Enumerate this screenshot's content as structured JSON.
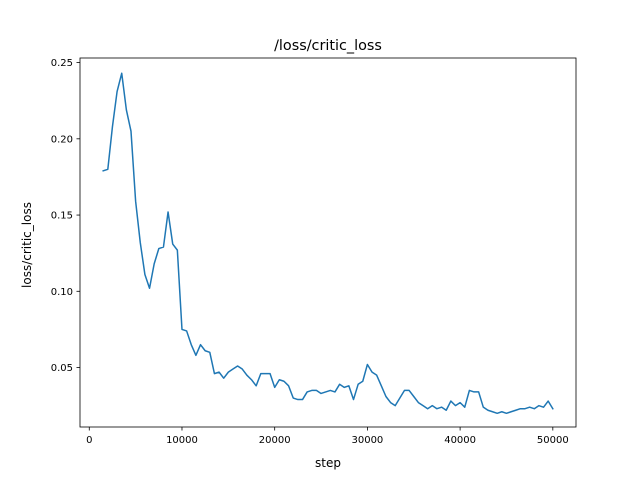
{
  "chart_data": {
    "type": "line",
    "title": "/loss/critic_loss",
    "xlabel": "step",
    "ylabel": "loss/critic_loss",
    "xlim": [
      -1000,
      52500
    ],
    "ylim": [
      0.011,
      0.253
    ],
    "xticks": [
      0,
      10000,
      20000,
      30000,
      40000,
      50000
    ],
    "xtick_labels": [
      "0",
      "10000",
      "20000",
      "30000",
      "40000",
      "50000"
    ],
    "yticks": [
      0.05,
      0.1,
      0.15,
      0.2,
      0.25
    ],
    "ytick_labels": [
      "0.05",
      "0.10",
      "0.15",
      "0.20",
      "0.25"
    ],
    "grid": false,
    "series": [
      {
        "color": "#1f77b4",
        "x": [
          1500,
          2000,
          2500,
          3000,
          3500,
          4000,
          4500,
          5000,
          5500,
          6000,
          6500,
          7000,
          7500,
          8000,
          8500,
          9000,
          9500,
          10000,
          10500,
          11000,
          11500,
          12000,
          12500,
          13000,
          13500,
          14000,
          14500,
          15000,
          15500,
          16000,
          16500,
          17000,
          17500,
          18000,
          18500,
          19000,
          19500,
          20000,
          20500,
          21000,
          21500,
          22000,
          22500,
          23000,
          23500,
          24000,
          24500,
          25000,
          25500,
          26000,
          26500,
          27000,
          27500,
          28000,
          28500,
          29000,
          29500,
          30000,
          30500,
          31000,
          31500,
          32000,
          32500,
          33000,
          33500,
          34000,
          34500,
          35000,
          35500,
          36000,
          36500,
          37000,
          37500,
          38000,
          38500,
          39000,
          39500,
          40000,
          40500,
          41000,
          41500,
          42000,
          42500,
          43000,
          43500,
          44000,
          44500,
          45000,
          45500,
          46000,
          46500,
          47000,
          47500,
          48000,
          48500,
          49000,
          49500,
          50000
        ],
        "y": [
          0.179,
          0.18,
          0.208,
          0.231,
          0.243,
          0.219,
          0.205,
          0.159,
          0.132,
          0.111,
          0.102,
          0.118,
          0.128,
          0.129,
          0.152,
          0.131,
          0.127,
          0.075,
          0.074,
          0.065,
          0.058,
          0.065,
          0.061,
          0.06,
          0.046,
          0.047,
          0.043,
          0.047,
          0.049,
          0.051,
          0.049,
          0.045,
          0.042,
          0.038,
          0.046,
          0.046,
          0.046,
          0.037,
          0.042,
          0.041,
          0.038,
          0.03,
          0.029,
          0.029,
          0.034,
          0.035,
          0.035,
          0.033,
          0.034,
          0.035,
          0.034,
          0.039,
          0.037,
          0.038,
          0.029,
          0.039,
          0.041,
          0.052,
          0.047,
          0.045,
          0.038,
          0.031,
          0.027,
          0.025,
          0.03,
          0.035,
          0.035,
          0.031,
          0.027,
          0.025,
          0.023,
          0.025,
          0.023,
          0.024,
          0.022,
          0.028,
          0.025,
          0.027,
          0.024,
          0.035,
          0.034,
          0.034,
          0.024,
          0.022,
          0.021,
          0.02,
          0.021,
          0.02,
          0.021,
          0.022,
          0.023,
          0.023,
          0.024,
          0.023,
          0.025,
          0.024,
          0.028,
          0.023
        ]
      }
    ]
  }
}
